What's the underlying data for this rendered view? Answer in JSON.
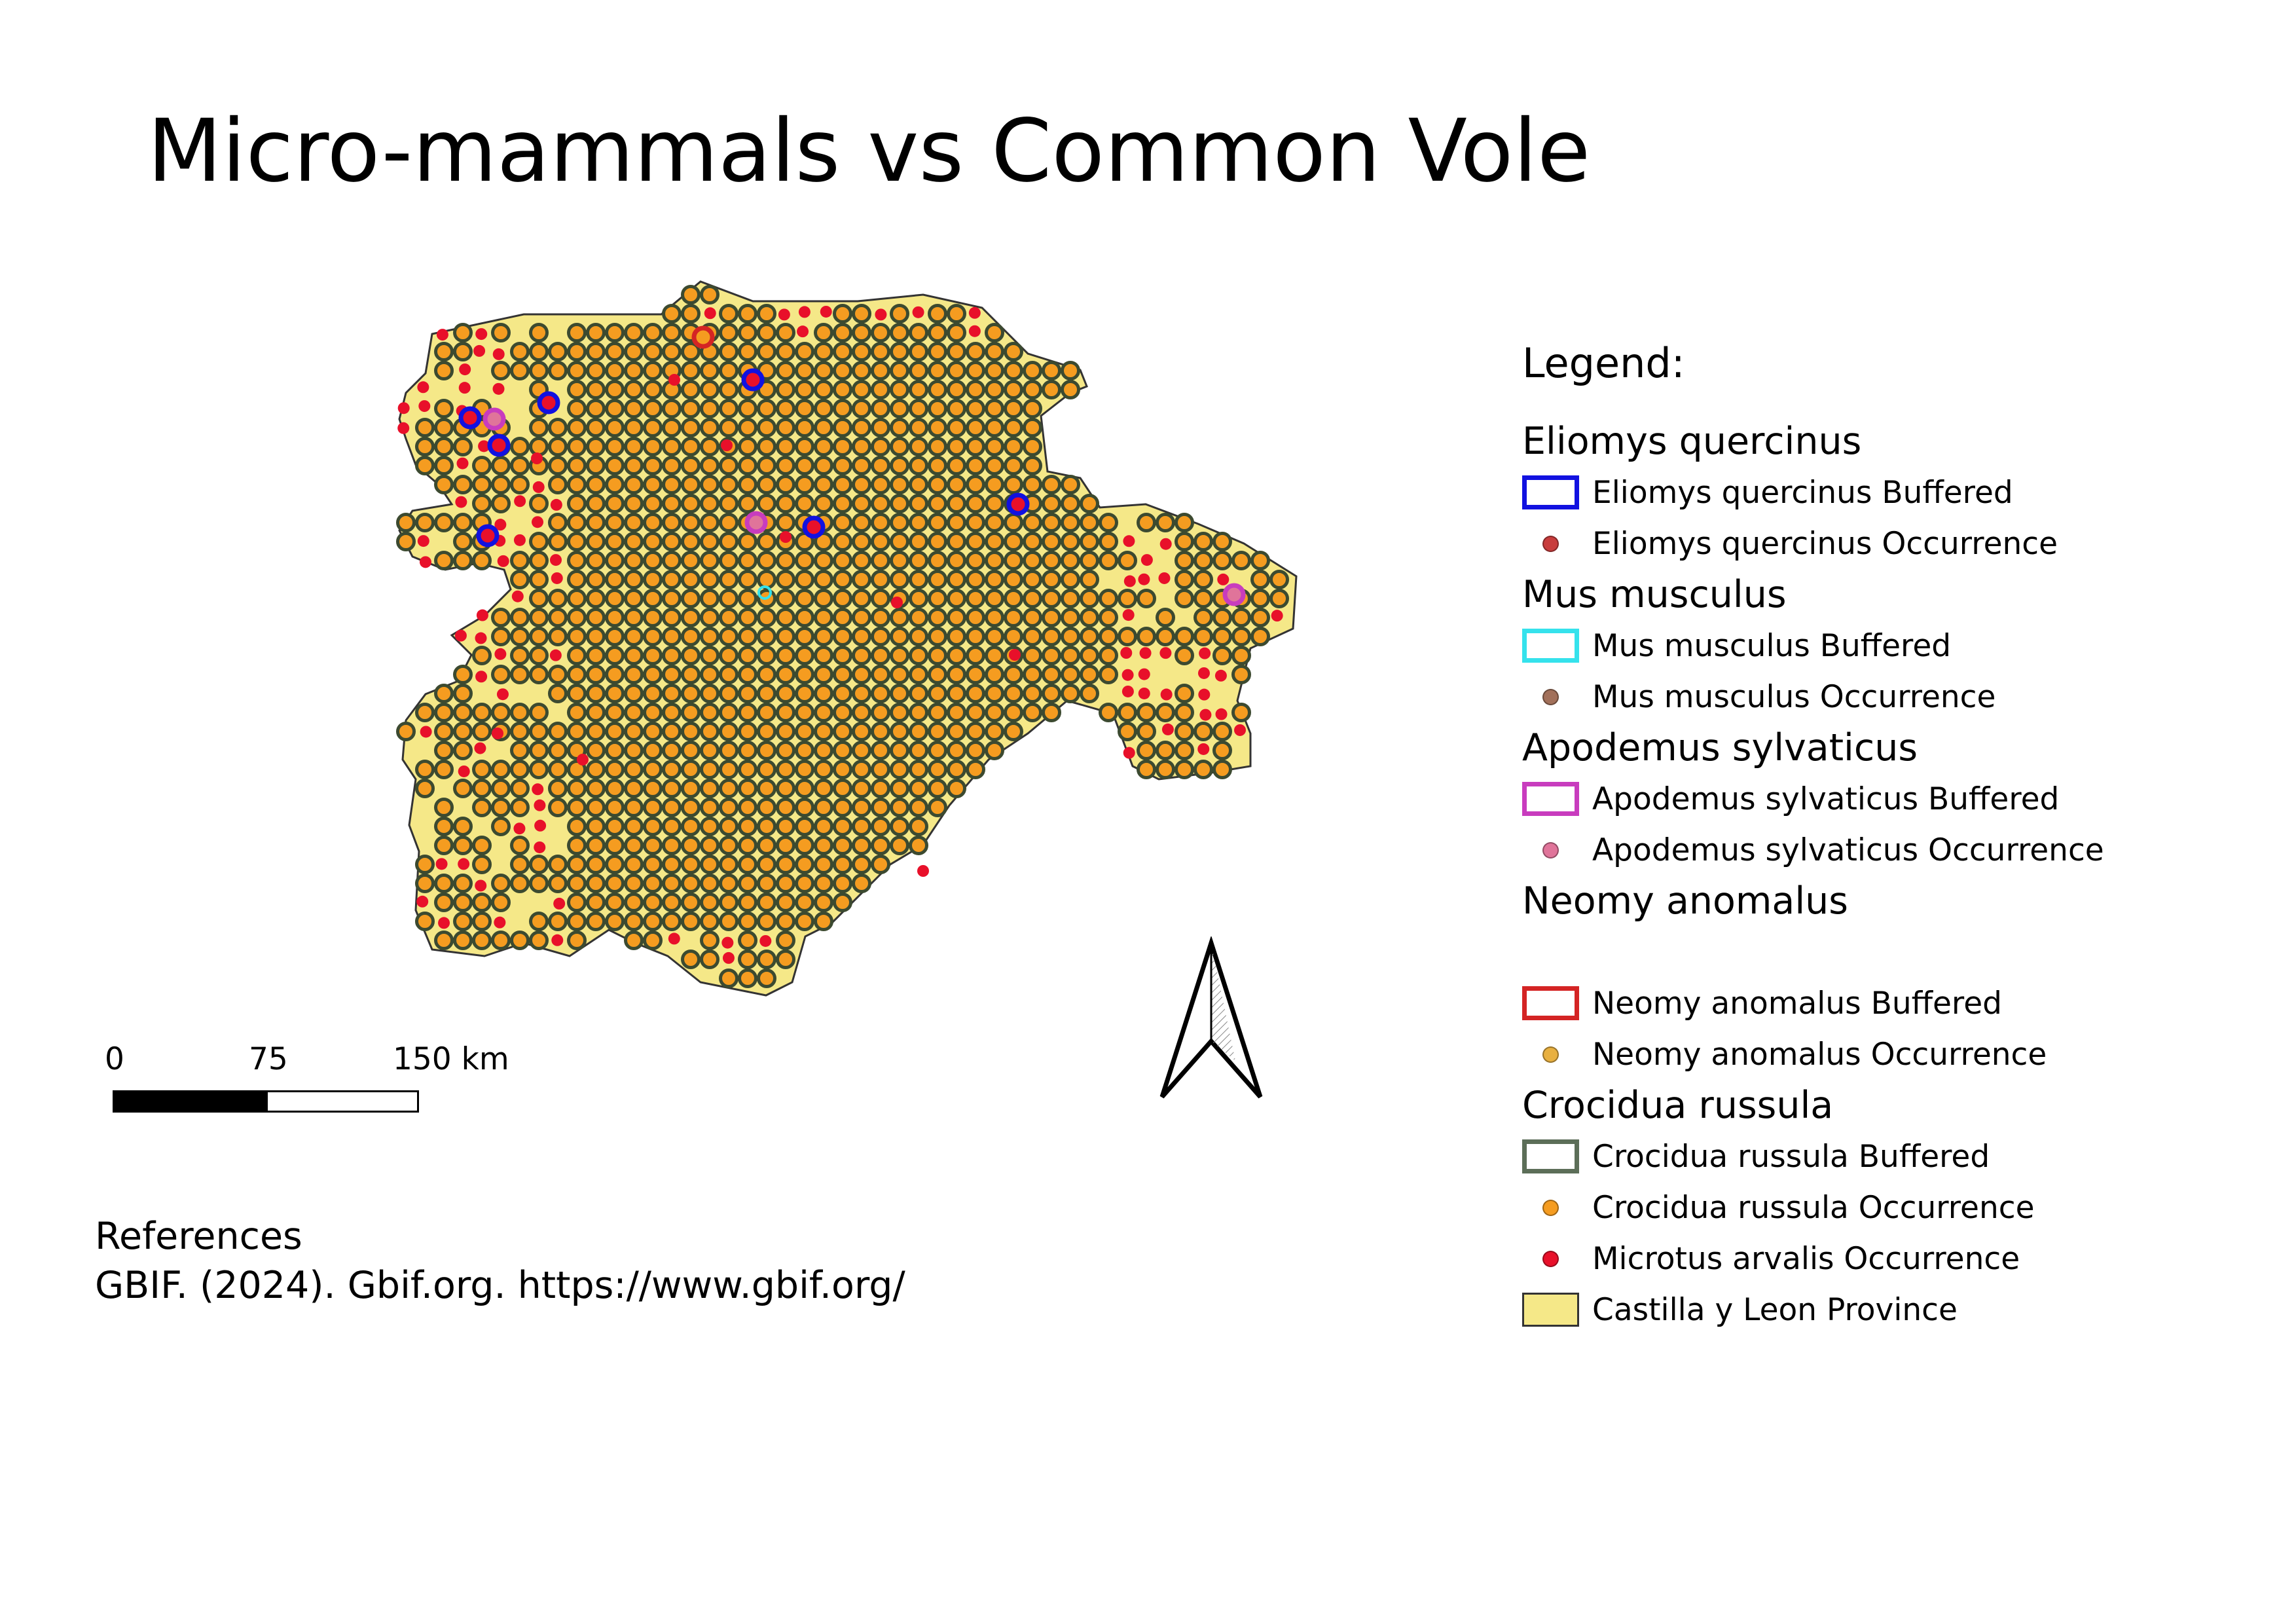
{
  "title": "Micro-mammals vs Common Vole",
  "legend": {
    "title": "Legend:",
    "groups": [
      {
        "name": "Eliomys quercinus",
        "items": [
          {
            "label": "Eliomys quercinus Buffered",
            "symbol": "rect",
            "stroke": "#1111e0"
          },
          {
            "label": "Eliomys quercinus Occurrence",
            "symbol": "dot",
            "fill": "#c83c3c"
          }
        ]
      },
      {
        "name": "Mus musculus",
        "items": [
          {
            "label": "Mus musculus Buffered",
            "symbol": "rect",
            "stroke": "#35e2ec"
          },
          {
            "label": "Mus musculus Occurrence",
            "symbol": "dot",
            "fill": "#a2705a"
          }
        ]
      },
      {
        "name": "Apodemus sylvaticus",
        "items": [
          {
            "label": "Apodemus sylvaticus Buffered",
            "symbol": "rect",
            "stroke": "#c83cbe"
          },
          {
            "label": "Apodemus sylvaticus Occurrence",
            "symbol": "dot",
            "fill": "#e0749a"
          }
        ]
      },
      {
        "name": "Neomy  anomalus",
        "spacer": true,
        "items": [
          {
            "label": "Neomy anomalus Buffered",
            "symbol": "rect",
            "stroke": "#d42424"
          },
          {
            "label": "Neomy anomalus Occurrence",
            "symbol": "dot",
            "fill": "#e8b040"
          }
        ]
      },
      {
        "name": "Crocidua russula",
        "items": [
          {
            "label": "Crocidua russula Buffered",
            "symbol": "rect",
            "stroke": "#5c6e58"
          },
          {
            "label": "Crocidua russula Occurrence",
            "symbol": "dot",
            "fill": "#f59c20"
          },
          {
            "label": "Microtus arvalis Occurrence",
            "symbol": "dot",
            "fill": "#e8102a"
          },
          {
            "label": "Castilla y Leon Province",
            "symbol": "fill",
            "fill": "#f5e888",
            "stroke": "#333333"
          }
        ]
      }
    ]
  },
  "scale": {
    "labels": [
      "0",
      "75",
      "150 km"
    ]
  },
  "references": {
    "heading": "References",
    "text": "GBIF. (2024). Gbif.org. https://www.gbif.org/"
  },
  "colors": {
    "province_fill": "#f5e888",
    "crocidura_fill": "#f59c20",
    "crocidura_stroke": "#3c4a30",
    "microtus": "#e8102a",
    "eliomys": "#1111e0",
    "apodemus": "#c83cbe",
    "neomys": "#d42424",
    "mus": "#35e2ec"
  }
}
